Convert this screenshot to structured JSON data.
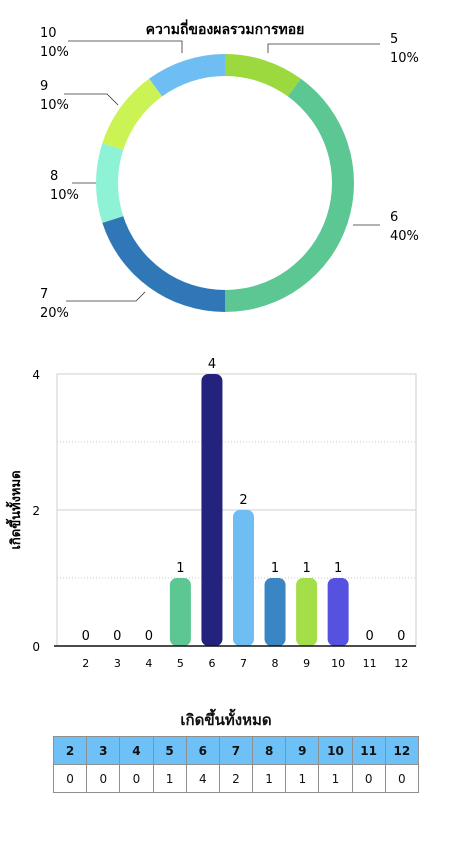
{
  "chart_data": [
    {
      "type": "pie",
      "title": "ความถี่ของผลรวมการทอย",
      "donut": true,
      "slices": [
        {
          "label": "5",
          "value": 1,
          "percent": "10%",
          "color": "#9bd93e"
        },
        {
          "label": "6",
          "value": 4,
          "percent": "40%",
          "color": "#5cc793"
        },
        {
          "label": "7",
          "value": 2,
          "percent": "20%",
          "color": "#3077b8"
        },
        {
          "label": "8",
          "value": 1,
          "percent": "10%",
          "color": "#8ef2d6"
        },
        {
          "label": "9",
          "value": 1,
          "percent": "10%",
          "color": "#cbf353"
        },
        {
          "label": "10",
          "value": 1,
          "percent": "10%",
          "color": "#6ebdf3"
        }
      ]
    },
    {
      "type": "bar",
      "title": "",
      "xlabel": "",
      "ylabel": "เกิดขึ้นทั้งหมด",
      "ylim": [
        0,
        4
      ],
      "yticks": [
        0,
        2,
        4
      ],
      "grid": true,
      "categories": [
        "2",
        "3",
        "4",
        "5",
        "6",
        "7",
        "8",
        "9",
        "10",
        "11",
        "12"
      ],
      "values": [
        0,
        0,
        0,
        1,
        4,
        2,
        1,
        1,
        1,
        0,
        0
      ],
      "colors": [
        "#5cc793",
        "#5cc793",
        "#5cc793",
        "#5cc793",
        "#23237e",
        "#6ebdf3",
        "#3a86c4",
        "#a4df4a",
        "#5452df",
        "#5cc793",
        "#5cc793"
      ]
    },
    {
      "type": "table",
      "title": "เกิดขึ้นทั้งหมด",
      "columns": [
        "2",
        "3",
        "4",
        "5",
        "6",
        "7",
        "8",
        "9",
        "10",
        "11",
        "12"
      ],
      "rows": [
        [
          "0",
          "0",
          "0",
          "1",
          "4",
          "2",
          "1",
          "1",
          "1",
          "0",
          "0"
        ]
      ]
    }
  ]
}
